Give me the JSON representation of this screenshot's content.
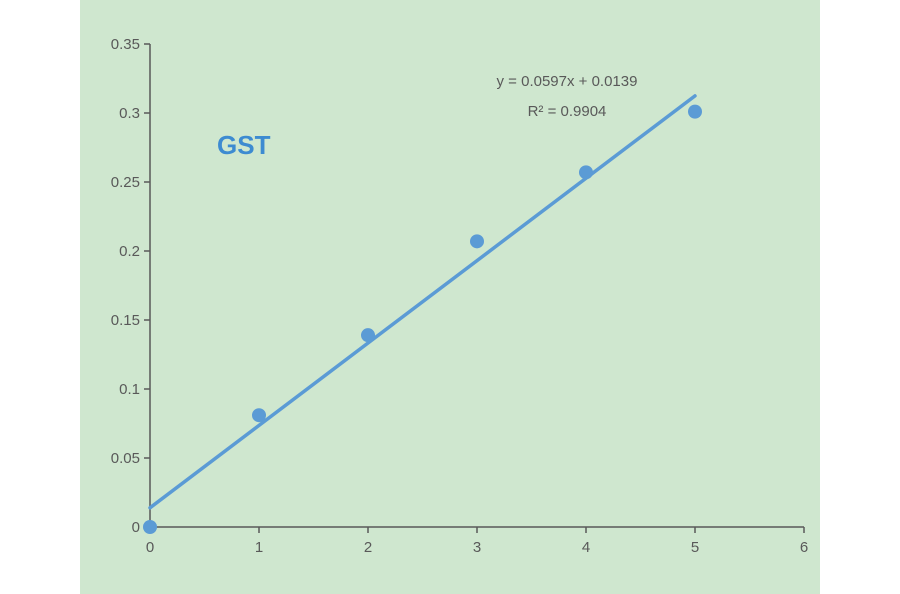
{
  "chart_data": {
    "type": "scatter",
    "title": "GST",
    "xlabel": "",
    "ylabel": "",
    "xlim": [
      0,
      6
    ],
    "ylim": [
      0,
      0.35
    ],
    "x_ticks": [
      0,
      1,
      2,
      3,
      4,
      5,
      6
    ],
    "y_ticks": [
      0,
      0.05,
      0.1,
      0.15,
      0.2,
      0.25,
      0.3,
      0.35
    ],
    "x_tick_labels": [
      "0",
      "1",
      "2",
      "3",
      "4",
      "5",
      "6"
    ],
    "y_tick_labels": [
      "0",
      "0.05",
      "0.1",
      "0.15",
      "0.2",
      "0.25",
      "0.3",
      "0.35"
    ],
    "grid": false,
    "series": [
      {
        "points": [
          {
            "x": 0,
            "y": 0.0
          },
          {
            "x": 1,
            "y": 0.081
          },
          {
            "x": 2,
            "y": 0.139
          },
          {
            "x": 3,
            "y": 0.207
          },
          {
            "x": 4,
            "y": 0.257
          },
          {
            "x": 5,
            "y": 0.301
          }
        ]
      }
    ],
    "trendline": {
      "slope": 0.0597,
      "intercept": 0.0139,
      "x_range": [
        0,
        5
      ],
      "equation_label": "y = 0.0597x + 0.0139",
      "r2_label": "R² = 0.9904"
    },
    "colors": {
      "background": "#cfe7cf",
      "marker": "#5b9bd5",
      "trendline": "#5b9bd5",
      "axis": "#595959",
      "title": "#3d8bd1"
    }
  }
}
